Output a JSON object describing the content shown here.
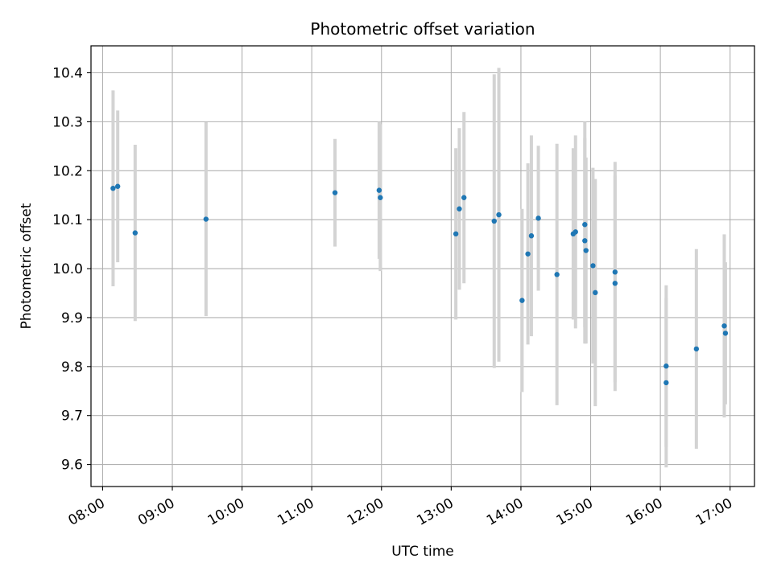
{
  "chart_data": {
    "type": "scatter",
    "title": "Photometric offset variation",
    "xlabel": "UTC time",
    "ylabel": "Photometric offset",
    "x_ticks": [
      "08:00",
      "09:00",
      "10:00",
      "11:00",
      "12:00",
      "13:00",
      "14:00",
      "15:00",
      "16:00",
      "17:00"
    ],
    "y_ticks": [
      "9.6",
      "9.7",
      "9.8",
      "9.9",
      "10.0",
      "10.1",
      "10.2",
      "10.3",
      "10.4"
    ],
    "xlim": [
      "07:50",
      "17:21"
    ],
    "ylim": [
      9.555,
      10.455
    ],
    "grid": true,
    "colors": {
      "points": "#1f77b4",
      "errorbars": "#d3d3d3",
      "grid": "#b0b0b0"
    },
    "series": [
      {
        "points": [
          {
            "x": "08:09",
            "y": 10.164,
            "err": 0.2
          },
          {
            "x": "08:13",
            "y": 10.168,
            "err": 0.155
          },
          {
            "x": "08:28",
            "y": 10.073,
            "err": 0.18
          },
          {
            "x": "09:29",
            "y": 10.101,
            "err": 0.198
          },
          {
            "x": "11:20",
            "y": 10.155,
            "err": 0.11
          },
          {
            "x": "11:58",
            "y": 10.16,
            "err": 0.14
          },
          {
            "x": "11:59",
            "y": 10.145,
            "err": 0.15
          },
          {
            "x": "13:04",
            "y": 10.071,
            "err": 0.175
          },
          {
            "x": "13:07",
            "y": 10.122,
            "err": 0.165
          },
          {
            "x": "13:11",
            "y": 10.145,
            "err": 0.175
          },
          {
            "x": "13:37",
            "y": 10.097,
            "err": 0.3
          },
          {
            "x": "13:41",
            "y": 10.11,
            "err": 0.3
          },
          {
            "x": "14:01",
            "y": 9.935,
            "err": 0.187
          },
          {
            "x": "14:06",
            "y": 10.03,
            "err": 0.185
          },
          {
            "x": "14:09",
            "y": 10.067,
            "err": 0.205
          },
          {
            "x": "14:15",
            "y": 10.103,
            "err": 0.148
          },
          {
            "x": "14:31",
            "y": 9.988,
            "err": 0.267
          },
          {
            "x": "14:45",
            "y": 10.071,
            "err": 0.175
          },
          {
            "x": "14:47",
            "y": 10.075,
            "err": 0.197
          },
          {
            "x": "14:55",
            "y": 10.09,
            "err": 0.21
          },
          {
            "x": "14:55",
            "y": 10.057,
            "err": 0.21
          },
          {
            "x": "14:56",
            "y": 10.037,
            "err": 0.19
          },
          {
            "x": "15:02",
            "y": 10.006,
            "err": 0.2
          },
          {
            "x": "15:04",
            "y": 9.951,
            "err": 0.232
          },
          {
            "x": "15:21",
            "y": 9.993,
            "err": 0.225
          },
          {
            "x": "15:21",
            "y": 9.97,
            "err": 0.22
          },
          {
            "x": "16:05",
            "y": 9.801,
            "err": 0.165
          },
          {
            "x": "16:05",
            "y": 9.767,
            "err": 0.173
          },
          {
            "x": "16:31",
            "y": 9.836,
            "err": 0.204
          },
          {
            "x": "16:55",
            "y": 9.883,
            "err": 0.187
          },
          {
            "x": "16:56",
            "y": 9.868,
            "err": 0.145
          }
        ]
      }
    ]
  }
}
